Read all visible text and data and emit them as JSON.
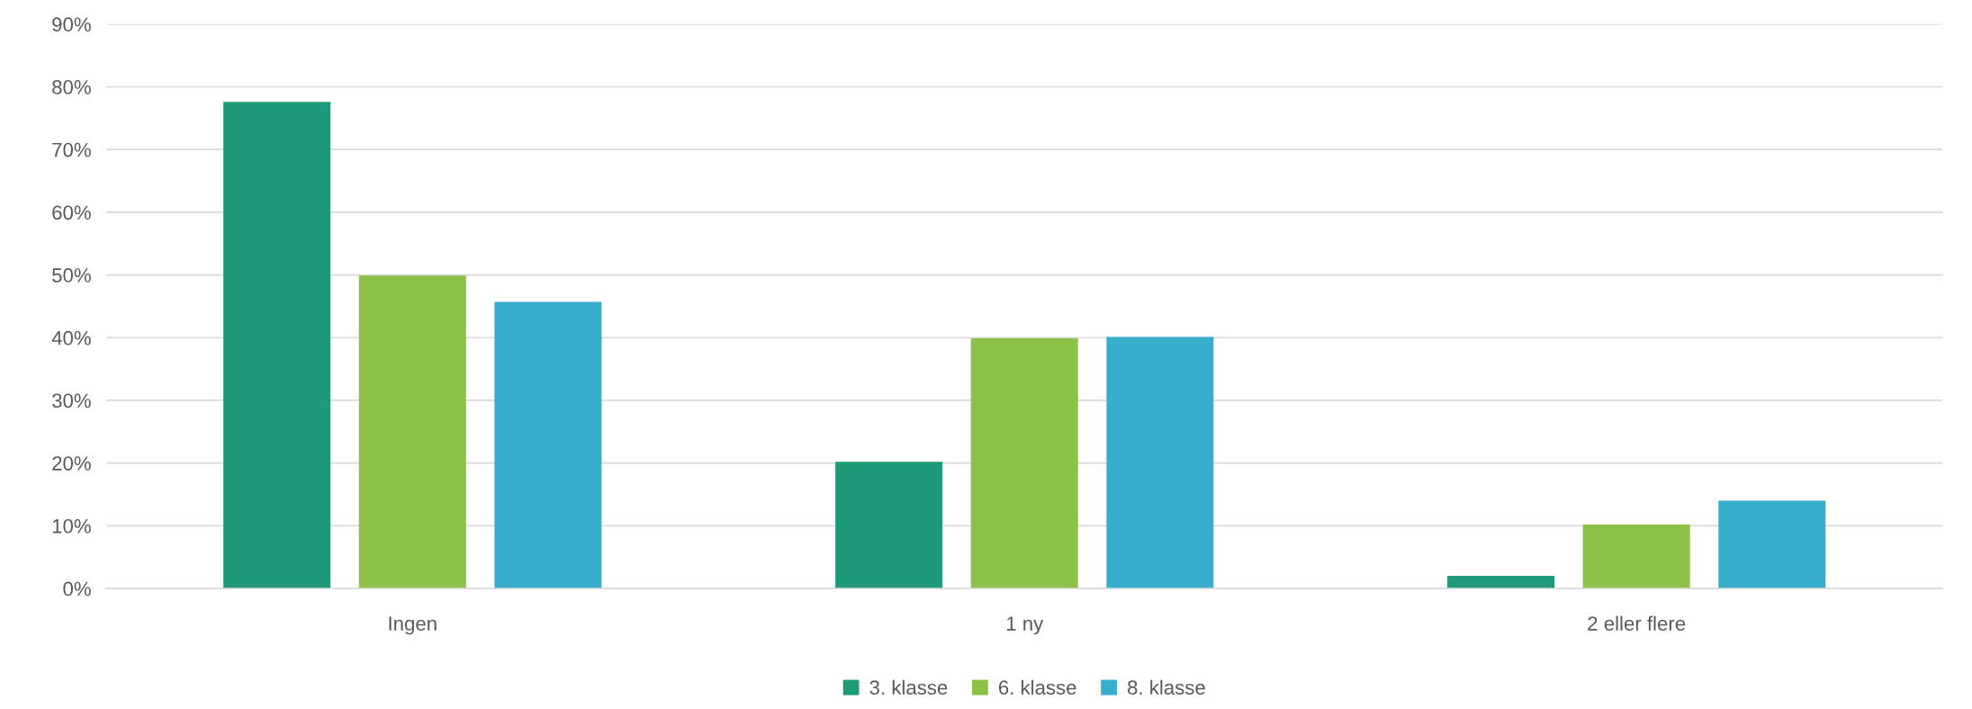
{
  "chart_data": {
    "type": "bar",
    "categories": [
      "Ingen",
      "1 ny",
      "2 eller flere"
    ],
    "series": [
      {
        "name": "3. klasse",
        "color": "#1e9a78",
        "values": [
          77.6,
          20.2,
          2.0
        ]
      },
      {
        "name": "6. klasse",
        "color": "#8bc144",
        "values": [
          49.9,
          39.9,
          10.2
        ]
      },
      {
        "name": "8. klasse",
        "color": "#37aecd",
        "values": [
          45.7,
          40.1,
          14.0
        ]
      }
    ],
    "ylim": [
      0,
      90
    ],
    "yticks": [
      {
        "value": 0,
        "label": "0%"
      },
      {
        "value": 10,
        "label": "10%"
      },
      {
        "value": 20,
        "label": "20%"
      },
      {
        "value": 30,
        "label": "30%"
      },
      {
        "value": 40,
        "label": "40%"
      },
      {
        "value": 50,
        "label": "50%"
      },
      {
        "value": 60,
        "label": "60%"
      },
      {
        "value": 70,
        "label": "70%"
      },
      {
        "value": 80,
        "label": "80%"
      },
      {
        "value": 90,
        "label": "90%"
      }
    ],
    "grid": "y",
    "legend": "bottom"
  }
}
